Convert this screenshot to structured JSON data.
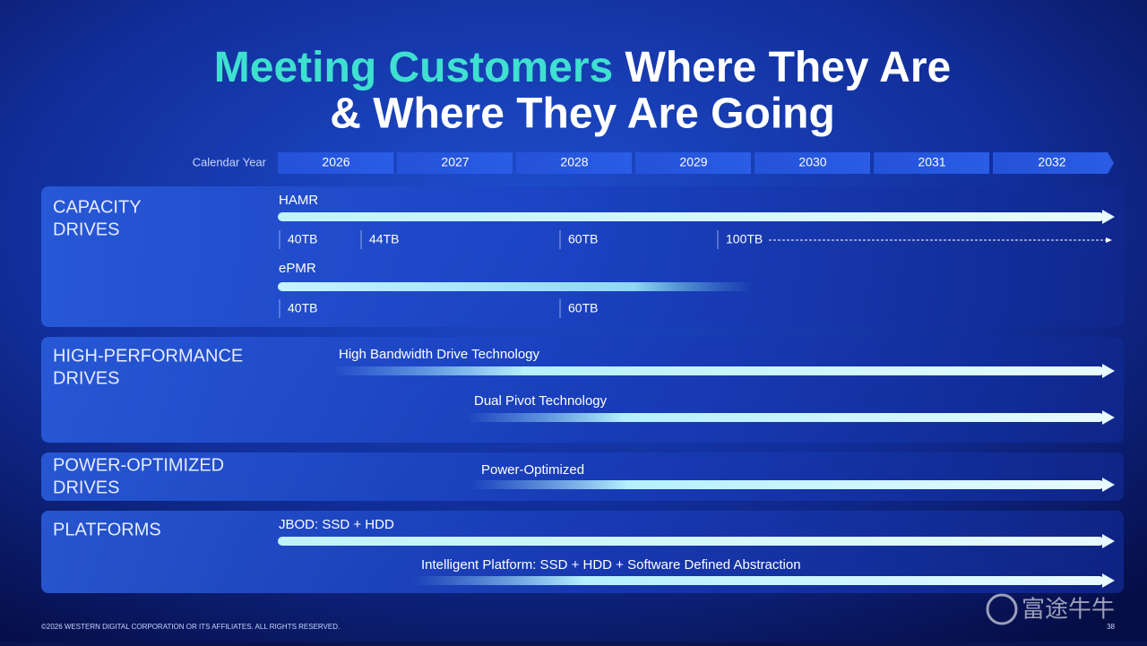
{
  "title": {
    "highlight": "Meeting Customers",
    "rest": "Where They Are",
    "line2": "& Where They Are Going"
  },
  "timeline": {
    "label": "Calendar Year",
    "years": [
      "2026",
      "2027",
      "2028",
      "2029",
      "2030",
      "2031",
      "2032"
    ]
  },
  "sections": [
    {
      "label": [
        "CAPACITY",
        "DRIVES"
      ],
      "tracks": [
        {
          "name": "HAMR",
          "milestones": [
            "40TB",
            "44TB",
            "60TB",
            "100TB"
          ]
        },
        {
          "name": "ePMR",
          "milestones": [
            "40TB",
            "60TB"
          ]
        }
      ]
    },
    {
      "label": [
        "HIGH-PERFORMANCE",
        "DRIVES"
      ],
      "tracks": [
        {
          "name": "High Bandwidth Drive Technology"
        },
        {
          "name": "Dual Pivot Technology"
        }
      ]
    },
    {
      "label": [
        "POWER-OPTIMIZED",
        "DRIVES"
      ],
      "tracks": [
        {
          "name": "Power-Optimized"
        }
      ]
    },
    {
      "label": [
        "PLATFORMS"
      ],
      "tracks": [
        {
          "name": "JBOD: SSD + HDD"
        },
        {
          "name": "Intelligent Platform: SSD + HDD + Software Defined Abstraction"
        }
      ]
    }
  ],
  "footer": {
    "copyright": "©2026 WESTERN DIGITAL CORPORATION OR ITS AFFILIATES. ALL RIGHTS RESERVED.",
    "page": "38"
  },
  "watermark": "富途牛牛"
}
